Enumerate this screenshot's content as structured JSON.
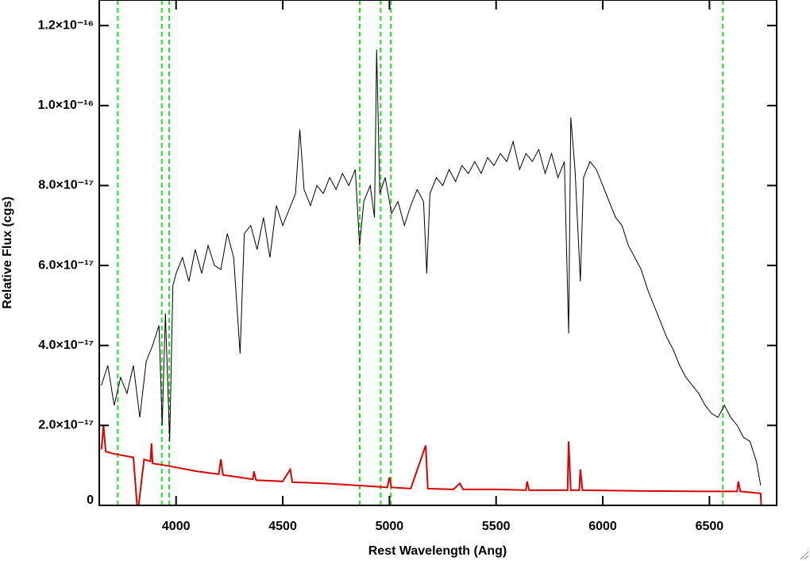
{
  "chart_data": {
    "type": "line",
    "xlabel": "Rest Wavelength (Ang)",
    "ylabel": "Relative Flux (cgs)",
    "xlim": [
      3640,
      6815
    ],
    "ylim": [
      0,
      1.264e-16
    ],
    "xticks": [
      4000,
      4500,
      5000,
      5500,
      6000,
      6500
    ],
    "yticks": [
      0,
      {
        "value": 2e-17,
        "label": "2.0×10⁻¹⁷"
      },
      {
        "value": 4e-17,
        "label": "4.0×10⁻¹⁷"
      },
      {
        "value": 6e-17,
        "label": "6.0×10⁻¹⁷"
      },
      {
        "value": 8e-17,
        "label": "8.0×10⁻¹⁷"
      },
      {
        "value": 1e-16,
        "label": "1.0×10⁻¹⁶"
      },
      {
        "value": 1.2e-16,
        "label": "1.2×10⁻¹⁶"
      }
    ],
    "reference_lines": [
      3727,
      3933,
      3968,
      4861,
      4959,
      5007,
      6563
    ],
    "reference_color": "#22dd22",
    "series": [
      {
        "color": "#000000",
        "x": [
          3650,
          3680,
          3710,
          3740,
          3770,
          3800,
          3830,
          3860,
          3890,
          3920,
          3935,
          3950,
          3970,
          3985,
          4000,
          4030,
          4060,
          4090,
          4120,
          4150,
          4180,
          4210,
          4240,
          4270,
          4300,
          4320,
          4350,
          4380,
          4410,
          4440,
          4470,
          4500,
          4530,
          4560,
          4580,
          4600,
          4630,
          4660,
          4690,
          4720,
          4750,
          4780,
          4810,
          4840,
          4860,
          4880,
          4910,
          4930,
          4940,
          4955,
          4980,
          5010,
          5040,
          5070,
          5100,
          5130,
          5160,
          5175,
          5190,
          5220,
          5250,
          5280,
          5310,
          5340,
          5370,
          5400,
          5430,
          5460,
          5490,
          5520,
          5550,
          5580,
          5610,
          5640,
          5670,
          5700,
          5730,
          5760,
          5790,
          5820,
          5840,
          5850,
          5870,
          5895,
          5910,
          5940,
          5970,
          6000,
          6030,
          6060,
          6090,
          6120,
          6150,
          6180,
          6210,
          6240,
          6270,
          6300,
          6330,
          6360,
          6390,
          6420,
          6450,
          6480,
          6510,
          6540,
          6570,
          6600,
          6630,
          6660,
          6690,
          6720,
          6740
        ],
        "values": [
          3e-17,
          3.5e-17,
          2.5e-17,
          3.2e-17,
          2.8e-17,
          3.5e-17,
          2.2e-17,
          3.6e-17,
          4e-17,
          4.5e-17,
          2e-17,
          4.8e-17,
          1.6e-17,
          5.5e-17,
          5.8e-17,
          6.2e-17,
          5.6e-17,
          6.4e-17,
          5.8e-17,
          6.5e-17,
          6e-17,
          5.9e-17,
          6.8e-17,
          6.2e-17,
          3.8e-17,
          6.8e-17,
          7e-17,
          6.4e-17,
          7.2e-17,
          6.2e-17,
          7.5e-17,
          7e-17,
          7.4e-17,
          7.8e-17,
          9.4e-17,
          7.9e-17,
          7.5e-17,
          8e-17,
          7.8e-17,
          8.2e-17,
          7.9e-17,
          8.3e-17,
          8e-17,
          8.4e-17,
          6.5e-17,
          7.6e-17,
          8e-17,
          7.2e-17,
          1.14e-16,
          7.8e-17,
          8.2e-17,
          7.3e-17,
          7.6e-17,
          7e-17,
          7.5e-17,
          7.9e-17,
          7.6e-17,
          5.8e-17,
          7.8e-17,
          8.2e-17,
          8e-17,
          8.4e-17,
          8.1e-17,
          8.5e-17,
          8.3e-17,
          8.6e-17,
          8.3e-17,
          8.7e-17,
          8.5e-17,
          8.8e-17,
          8.6e-17,
          9.1e-17,
          8.4e-17,
          8.8e-17,
          8.6e-17,
          8.9e-17,
          8.3e-17,
          8.8e-17,
          8.2e-17,
          8.6e-17,
          4.3e-17,
          9.7e-17,
          8.4e-17,
          5.6e-17,
          8.2e-17,
          8.6e-17,
          8.4e-17,
          8e-17,
          7.6e-17,
          7.2e-17,
          7e-17,
          6.5e-17,
          6.2e-17,
          5.9e-17,
          5.4e-17,
          5e-17,
          4.6e-17,
          4.2e-17,
          3.9e-17,
          3.5e-17,
          3.2e-17,
          3e-17,
          2.8e-17,
          2.5e-17,
          2.3e-17,
          2.2e-17,
          2.5e-17,
          2.2e-17,
          2e-17,
          1.7e-17,
          1.6e-17,
          1.1e-17,
          5e-18
        ]
      },
      {
        "color": "#dd0000",
        "x": [
          3650,
          3660,
          3670,
          3700,
          3750,
          3800,
          3820,
          3850,
          3880,
          3885,
          3890,
          3950,
          4000,
          4100,
          4200,
          4210,
          4220,
          4300,
          4360,
          4365,
          4375,
          4500,
          4535,
          4545,
          4700,
          4850,
          4990,
          5000,
          5010,
          5100,
          5170,
          5180,
          5300,
          5330,
          5345,
          5500,
          5640,
          5645,
          5655,
          5835,
          5840,
          5850,
          5890,
          5895,
          5905,
          6200,
          6500,
          6630,
          6635,
          6645,
          6740,
          6745
        ],
        "values": [
          1.4e-17,
          2e-17,
          1.35e-17,
          1.3e-17,
          1.25e-17,
          1.2e-17,
          -2e-18,
          1.15e-17,
          1.1e-17,
          1.55e-17,
          1.05e-17,
          1e-17,
          9.5e-18,
          8.5e-18,
          7.8e-18,
          1.15e-17,
          7.6e-18,
          7e-18,
          6.5e-18,
          8.5e-18,
          6.3e-18,
          6e-18,
          9e-18,
          5.8e-18,
          5.5e-18,
          5e-18,
          4.5e-18,
          7e-18,
          4.5e-18,
          4.2e-18,
          1.5e-17,
          4.2e-18,
          4e-18,
          5.5e-18,
          4e-18,
          4e-18,
          3.8e-18,
          6e-18,
          3.8e-18,
          3.8e-18,
          1.6e-17,
          3.8e-18,
          3.8e-18,
          9e-18,
          3.8e-18,
          3.6e-18,
          3.5e-18,
          3.5e-18,
          6e-18,
          3.5e-18,
          3e-18,
          -2e-18
        ]
      }
    ]
  }
}
